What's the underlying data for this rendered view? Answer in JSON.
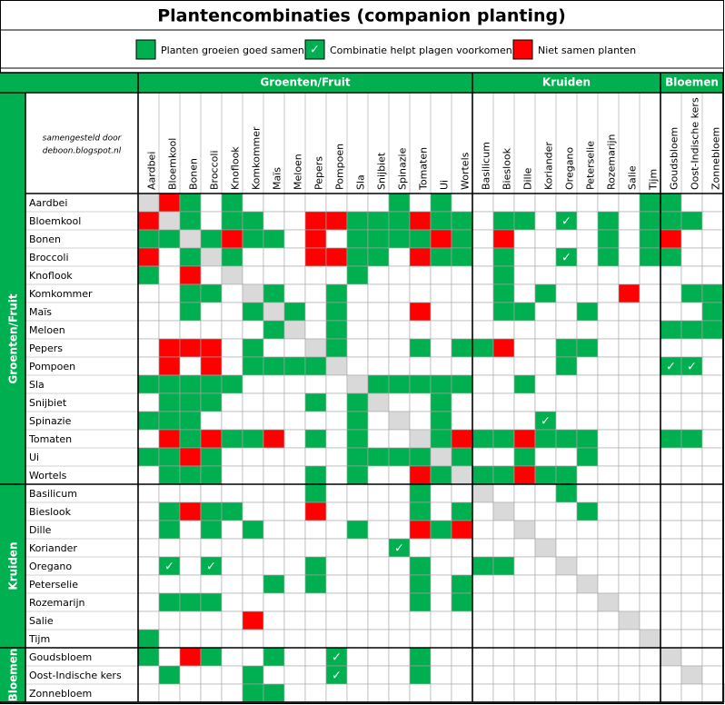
{
  "title": "Plantencombinaties (companion planting)",
  "legend": [
    {
      "code": "G",
      "label": "Planten groeien goed samen"
    },
    {
      "code": "C",
      "label": "Combinatie helpt plagen voorkomen"
    },
    {
      "code": "R",
      "label": "Niet samen planten"
    }
  ],
  "check_symbol": "✓",
  "credit": [
    "samengesteld door",
    "deboon.blogspot.nl"
  ],
  "groups": [
    {
      "name": "Groenten/Fruit",
      "size": 16
    },
    {
      "name": "Kruiden",
      "size": 9
    },
    {
      "name": "Bloemen",
      "size": 3
    }
  ],
  "plants": [
    "Aardbei",
    "Bloemkool",
    "Bonen",
    "Broccoli",
    "Knoflook",
    "Komkommer",
    "Maïs",
    "Meloen",
    "Pepers",
    "Pompoen",
    "Sla",
    "Snijbiet",
    "Spinazie",
    "Tomaten",
    "Ui",
    "Wortels",
    "Basilicum",
    "Bieslook",
    "Dille",
    "Koriander",
    "Oregano",
    "Peterselie",
    "Rozemarijn",
    "Salie",
    "Tijm",
    "Goudsbloem",
    "Oost-Indische kers",
    "Zonnebloem"
  ],
  "matrix": [
    "DRG-G-------G-G---------GG--",
    "RDG-GG--RRGGGRGG-GG-C-G-GGG-",
    "GGDGRGG-R-GGGGRG-R----G-GR--",
    "R-GDG---RRGG-RGG-G--C-G-GG--",
    "G-R-D-----G------G----------",
    "--GG-DG--G-------G-G---R--GG",
    "--G--GDG-G---R---GG--G-----G",
    "------GD-G---------------GGG",
    "-RRR-G--DG---G-GGR--GG------",
    "-R-R-GGGGD----------G----CC-",
    "GGGGG-----DGGGGG--G---------",
    "-GGG----G-GD--G-------------",
    "GGG-------G-D-G----C--------",
    "-RGRGGR-G-G--DGRGGRGGG---GG-",
    "GGRG------GGGGDG--G--G------",
    "-GGG----G-G--RGDGGRGG-------",
    "--------G----G--D---G-------",
    "-GRGG---R----G-G-D---G------",
    "-G-G-G----G--RGR--D---------",
    "------------C------D--------",
    "-C-C----G----G--GG--D-------",
    "------G-G----G-G-----D------",
    "-GGG---------G-G------D-----",
    "-----R-----------------D----",
    "G-----------------------D---",
    "G-RG--G--C---G-----------D--",
    "-G---G---C---G------------D-",
    "-----GG---------------------D"
  ]
}
